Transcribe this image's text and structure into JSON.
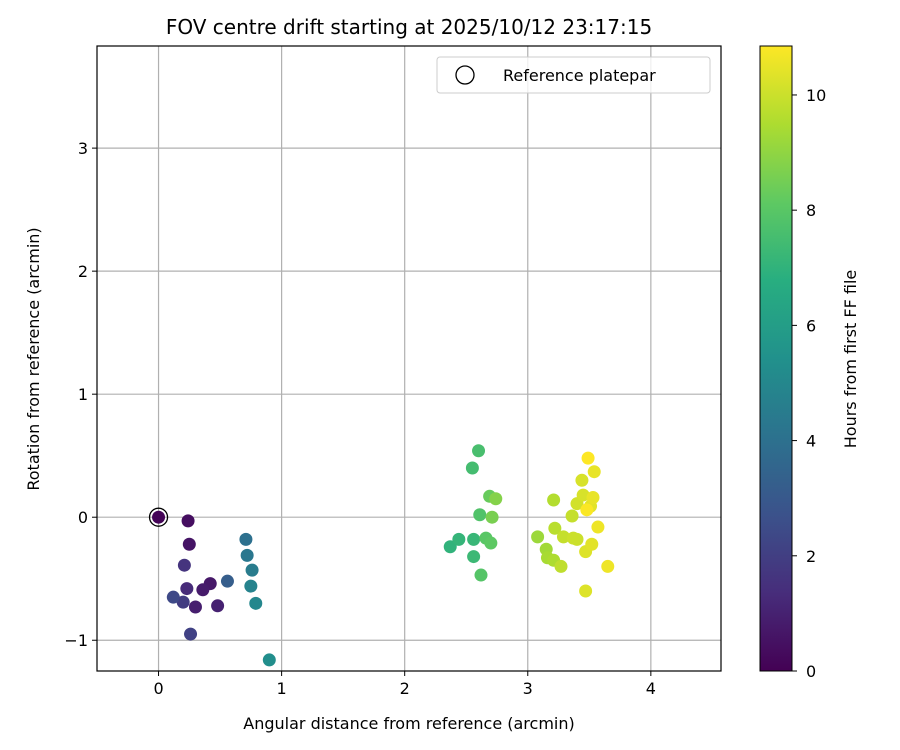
{
  "chart_data": {
    "type": "scatter",
    "title": "FOV centre drift starting at 2025/10/12 23:17:15",
    "xlabel": "Angular distance from reference (arcmin)",
    "ylabel": "Rotation from reference (arcmin)",
    "xlim": [
      -0.5,
      4.57
    ],
    "ylim": [
      -1.25,
      3.83
    ],
    "xticks": [
      0,
      1,
      2,
      3,
      4
    ],
    "yticks": [
      -1,
      0,
      1,
      2,
      3
    ],
    "grid": true,
    "legend": {
      "placement": "top-right",
      "entries": [
        "Reference platepar"
      ]
    },
    "colorbar": {
      "label": "Hours from first FF file",
      "min": 0,
      "max": 10.85,
      "ticks": [
        0,
        2,
        4,
        6,
        8,
        10
      ],
      "colormap": "viridis"
    },
    "reference_point": {
      "x": 0,
      "y": 0
    },
    "points": [
      {
        "x": 0.0,
        "y": 0.0,
        "c": 0.1
      },
      {
        "x": 0.24,
        "y": -0.03,
        "c": 0.4
      },
      {
        "x": 0.25,
        "y": -0.22,
        "c": 0.6
      },
      {
        "x": 0.42,
        "y": -0.54,
        "c": 0.7
      },
      {
        "x": 0.36,
        "y": -0.59,
        "c": 0.8
      },
      {
        "x": 0.3,
        "y": -0.73,
        "c": 0.9
      },
      {
        "x": 0.48,
        "y": -0.72,
        "c": 1.0
      },
      {
        "x": 0.23,
        "y": -0.58,
        "c": 1.3
      },
      {
        "x": 0.21,
        "y": -0.39,
        "c": 1.6
      },
      {
        "x": 0.2,
        "y": -0.69,
        "c": 1.9
      },
      {
        "x": 0.26,
        "y": -0.95,
        "c": 2.1
      },
      {
        "x": 0.12,
        "y": -0.65,
        "c": 2.4
      },
      {
        "x": 0.56,
        "y": -0.52,
        "c": 3.2
      },
      {
        "x": 0.71,
        "y": -0.18,
        "c": 4.0
      },
      {
        "x": 0.72,
        "y": -0.31,
        "c": 4.3
      },
      {
        "x": 0.76,
        "y": -0.43,
        "c": 4.5
      },
      {
        "x": 0.75,
        "y": -0.56,
        "c": 4.8
      },
      {
        "x": 0.79,
        "y": -0.7,
        "c": 5.0
      },
      {
        "x": 0.9,
        "y": -1.16,
        "c": 5.3
      },
      {
        "x": 2.37,
        "y": -0.24,
        "c": 7.0
      },
      {
        "x": 2.44,
        "y": -0.18,
        "c": 7.1
      },
      {
        "x": 2.56,
        "y": -0.18,
        "c": 7.2
      },
      {
        "x": 2.56,
        "y": -0.32,
        "c": 7.3
      },
      {
        "x": 2.55,
        "y": 0.4,
        "c": 7.5
      },
      {
        "x": 2.6,
        "y": 0.54,
        "c": 7.6
      },
      {
        "x": 2.61,
        "y": 0.02,
        "c": 7.8
      },
      {
        "x": 2.62,
        "y": -0.47,
        "c": 7.9
      },
      {
        "x": 2.66,
        "y": -0.17,
        "c": 8.0
      },
      {
        "x": 2.7,
        "y": -0.21,
        "c": 8.1
      },
      {
        "x": 2.69,
        "y": 0.17,
        "c": 8.3
      },
      {
        "x": 2.71,
        "y": 0.0,
        "c": 8.6
      },
      {
        "x": 2.74,
        "y": 0.15,
        "c": 8.8
      },
      {
        "x": 3.08,
        "y": -0.16,
        "c": 9.2
      },
      {
        "x": 3.15,
        "y": -0.26,
        "c": 9.3
      },
      {
        "x": 3.16,
        "y": -0.33,
        "c": 9.4
      },
      {
        "x": 3.21,
        "y": -0.35,
        "c": 9.5
      },
      {
        "x": 3.21,
        "y": 0.14,
        "c": 9.6
      },
      {
        "x": 3.22,
        "y": -0.09,
        "c": 9.7
      },
      {
        "x": 3.27,
        "y": -0.4,
        "c": 9.8
      },
      {
        "x": 3.29,
        "y": -0.16,
        "c": 9.9
      },
      {
        "x": 3.36,
        "y": 0.01,
        "c": 9.9
      },
      {
        "x": 3.37,
        "y": -0.17,
        "c": 10.0
      },
      {
        "x": 3.4,
        "y": -0.18,
        "c": 10.0
      },
      {
        "x": 3.4,
        "y": 0.11,
        "c": 10.1
      },
      {
        "x": 3.44,
        "y": 0.3,
        "c": 10.2
      },
      {
        "x": 3.45,
        "y": 0.18,
        "c": 10.2
      },
      {
        "x": 3.47,
        "y": -0.28,
        "c": 10.3
      },
      {
        "x": 3.47,
        "y": -0.6,
        "c": 10.3
      },
      {
        "x": 3.51,
        "y": 0.09,
        "c": 10.4
      },
      {
        "x": 3.52,
        "y": -0.22,
        "c": 10.4
      },
      {
        "x": 3.53,
        "y": 0.16,
        "c": 10.5
      },
      {
        "x": 3.54,
        "y": 0.37,
        "c": 10.5
      },
      {
        "x": 3.57,
        "y": -0.08,
        "c": 10.6
      },
      {
        "x": 3.65,
        "y": -0.4,
        "c": 10.6
      },
      {
        "x": 3.48,
        "y": 0.06,
        "c": 10.8
      },
      {
        "x": 3.49,
        "y": 0.48,
        "c": 10.85
      }
    ]
  }
}
